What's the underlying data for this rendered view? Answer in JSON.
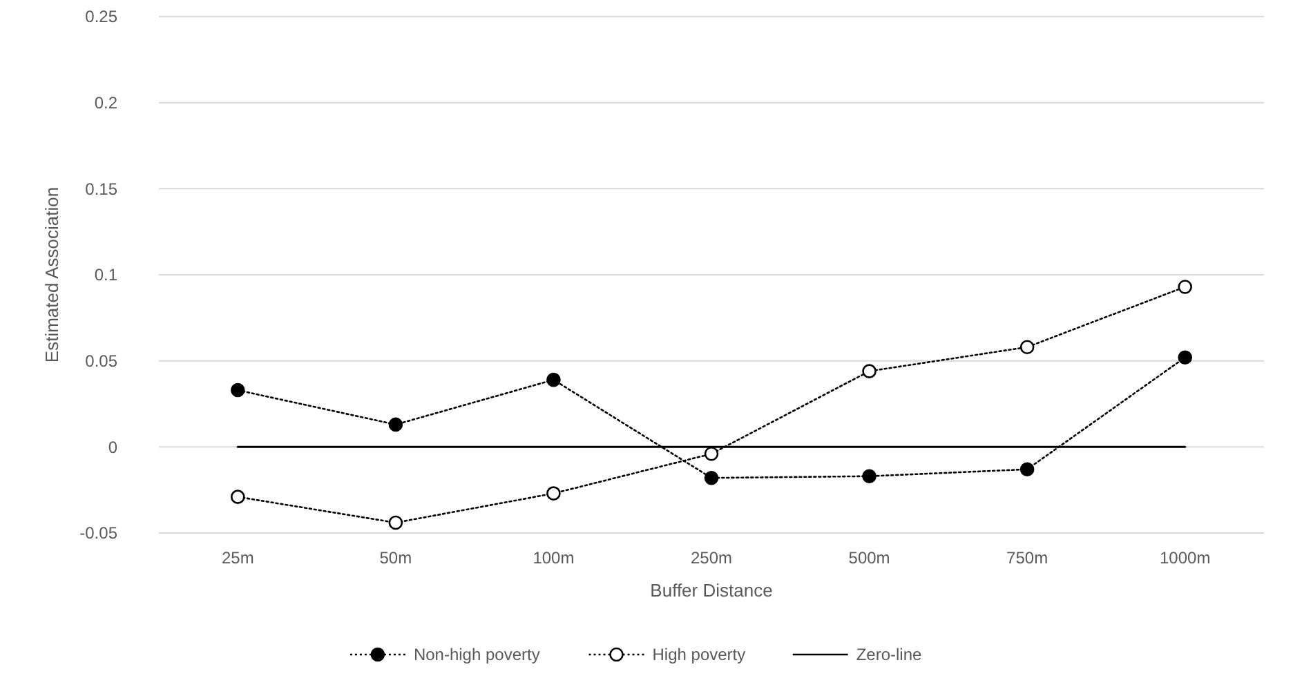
{
  "chart_data": {
    "type": "line",
    "xlabel": "Buffer Distance",
    "ylabel": "Estimated Association",
    "categories": [
      "25m",
      "50m",
      "100m",
      "250m",
      "500m",
      "750m",
      "1000m"
    ],
    "ylim": [
      -0.05,
      0.25
    ],
    "yticks": [
      -0.05,
      0,
      0.05,
      0.1,
      0.15,
      0.2,
      0.25
    ],
    "grid": "y",
    "legend": "bottom",
    "series": [
      {
        "name": "Non-high poverty",
        "color": "#000000",
        "marker": "circle",
        "line_style": "dotted",
        "values": [
          0.033,
          0.013,
          0.039,
          -0.018,
          -0.017,
          -0.013,
          0.052
        ]
      },
      {
        "name": "High poverty",
        "color": "#000000",
        "marker": "circle-open",
        "line_style": "dotted",
        "values": [
          -0.029,
          -0.044,
          -0.027,
          -0.004,
          0.044,
          0.058,
          0.093
        ]
      },
      {
        "name": "Zero-line",
        "color": "#000000",
        "marker": "none",
        "line_style": "solid",
        "values": [
          0,
          0,
          0,
          0,
          0,
          0,
          0
        ]
      }
    ]
  }
}
